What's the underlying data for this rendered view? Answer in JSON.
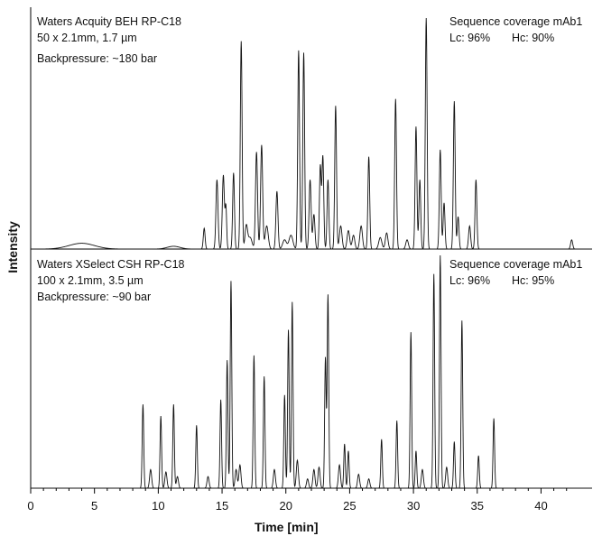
{
  "chart_data": {
    "type": "line",
    "xlabel": "Time [min]",
    "ylabel": "Intensity",
    "xlim": [
      0,
      44
    ],
    "xticks": [
      0,
      5,
      10,
      15,
      20,
      25,
      30,
      35,
      40
    ],
    "grid": false,
    "legend": "none",
    "panels": [
      {
        "column": "Waters Acquity BEH RP-C18",
        "dimensions": "50 x 2.1mm, 1.7 µm",
        "backpressure": "Backpressure: ~180 bar",
        "coverage_title": "Sequence coverage mAb1",
        "lc": "Lc: 96%",
        "hc": "Hc: 90%",
        "peaks": [
          [
            4.0,
            0.025,
            1.0
          ],
          [
            11.2,
            0.012,
            0.5
          ],
          [
            13.6,
            0.09,
            0.07
          ],
          [
            14.6,
            0.3,
            0.08
          ],
          [
            15.1,
            0.32,
            0.08
          ],
          [
            15.3,
            0.18,
            0.06
          ],
          [
            15.9,
            0.33,
            0.07
          ],
          [
            16.5,
            0.9,
            0.07
          ],
          [
            16.9,
            0.1,
            0.1
          ],
          [
            17.2,
            0.05,
            0.15
          ],
          [
            17.7,
            0.42,
            0.08
          ],
          [
            18.1,
            0.45,
            0.08
          ],
          [
            18.5,
            0.1,
            0.12
          ],
          [
            19.3,
            0.25,
            0.08
          ],
          [
            19.9,
            0.04,
            0.15
          ],
          [
            20.4,
            0.06,
            0.15
          ],
          [
            21.0,
            0.86,
            0.07
          ],
          [
            21.4,
            0.85,
            0.07
          ],
          [
            21.9,
            0.3,
            0.08
          ],
          [
            22.2,
            0.15,
            0.08
          ],
          [
            22.7,
            0.36,
            0.07
          ],
          [
            22.9,
            0.4,
            0.07
          ],
          [
            23.3,
            0.3,
            0.07
          ],
          [
            23.9,
            0.62,
            0.07
          ],
          [
            24.3,
            0.1,
            0.1
          ],
          [
            24.9,
            0.08,
            0.1
          ],
          [
            25.3,
            0.06,
            0.1
          ],
          [
            25.9,
            0.1,
            0.1
          ],
          [
            26.5,
            0.4,
            0.07
          ],
          [
            27.4,
            0.05,
            0.12
          ],
          [
            27.9,
            0.07,
            0.1
          ],
          [
            28.6,
            0.65,
            0.07
          ],
          [
            29.5,
            0.04,
            0.1
          ],
          [
            30.2,
            0.53,
            0.07
          ],
          [
            30.5,
            0.3,
            0.07
          ],
          [
            31.0,
            1.0,
            0.07
          ],
          [
            32.1,
            0.43,
            0.07
          ],
          [
            32.4,
            0.2,
            0.07
          ],
          [
            33.2,
            0.64,
            0.07
          ],
          [
            33.5,
            0.14,
            0.07
          ],
          [
            34.4,
            0.1,
            0.08
          ],
          [
            34.9,
            0.3,
            0.07
          ],
          [
            42.4,
            0.04,
            0.08
          ]
        ]
      },
      {
        "column": "Waters XSelect CSH RP-C18",
        "dimensions": "100 x 2.1mm, 3.5 µm",
        "backpressure": "Backpressure: ~90 bar",
        "coverage_title": "Sequence coverage mAb1",
        "lc": "Lc: 96%",
        "hc": "Hc: 95%",
        "peaks": [
          [
            8.8,
            0.36,
            0.06
          ],
          [
            9.4,
            0.08,
            0.08
          ],
          [
            10.2,
            0.31,
            0.06
          ],
          [
            10.6,
            0.07,
            0.08
          ],
          [
            11.2,
            0.36,
            0.06
          ],
          [
            11.5,
            0.05,
            0.08
          ],
          [
            13.0,
            0.27,
            0.06
          ],
          [
            13.9,
            0.05,
            0.08
          ],
          [
            14.9,
            0.38,
            0.06
          ],
          [
            15.4,
            0.55,
            0.06
          ],
          [
            15.7,
            0.89,
            0.06
          ],
          [
            16.1,
            0.08,
            0.08
          ],
          [
            16.4,
            0.1,
            0.08
          ],
          [
            17.5,
            0.57,
            0.06
          ],
          [
            18.3,
            0.48,
            0.06
          ],
          [
            19.1,
            0.08,
            0.08
          ],
          [
            19.9,
            0.4,
            0.06
          ],
          [
            20.2,
            0.68,
            0.06
          ],
          [
            20.5,
            0.8,
            0.06
          ],
          [
            20.9,
            0.12,
            0.08
          ],
          [
            21.7,
            0.04,
            0.08
          ],
          [
            22.2,
            0.08,
            0.08
          ],
          [
            22.6,
            0.09,
            0.08
          ],
          [
            23.1,
            0.56,
            0.06
          ],
          [
            23.3,
            0.83,
            0.06
          ],
          [
            24.2,
            0.1,
            0.08
          ],
          [
            24.6,
            0.19,
            0.06
          ],
          [
            24.9,
            0.16,
            0.06
          ],
          [
            25.7,
            0.06,
            0.08
          ],
          [
            26.5,
            0.04,
            0.08
          ],
          [
            27.5,
            0.21,
            0.06
          ],
          [
            28.7,
            0.29,
            0.06
          ],
          [
            29.8,
            0.67,
            0.06
          ],
          [
            30.2,
            0.16,
            0.06
          ],
          [
            30.7,
            0.08,
            0.08
          ],
          [
            31.6,
            0.92,
            0.06
          ],
          [
            32.1,
            1.0,
            0.06
          ],
          [
            32.6,
            0.09,
            0.08
          ],
          [
            33.2,
            0.2,
            0.06
          ],
          [
            33.8,
            0.72,
            0.06
          ],
          [
            35.1,
            0.14,
            0.06
          ],
          [
            36.3,
            0.3,
            0.06
          ]
        ]
      }
    ]
  }
}
